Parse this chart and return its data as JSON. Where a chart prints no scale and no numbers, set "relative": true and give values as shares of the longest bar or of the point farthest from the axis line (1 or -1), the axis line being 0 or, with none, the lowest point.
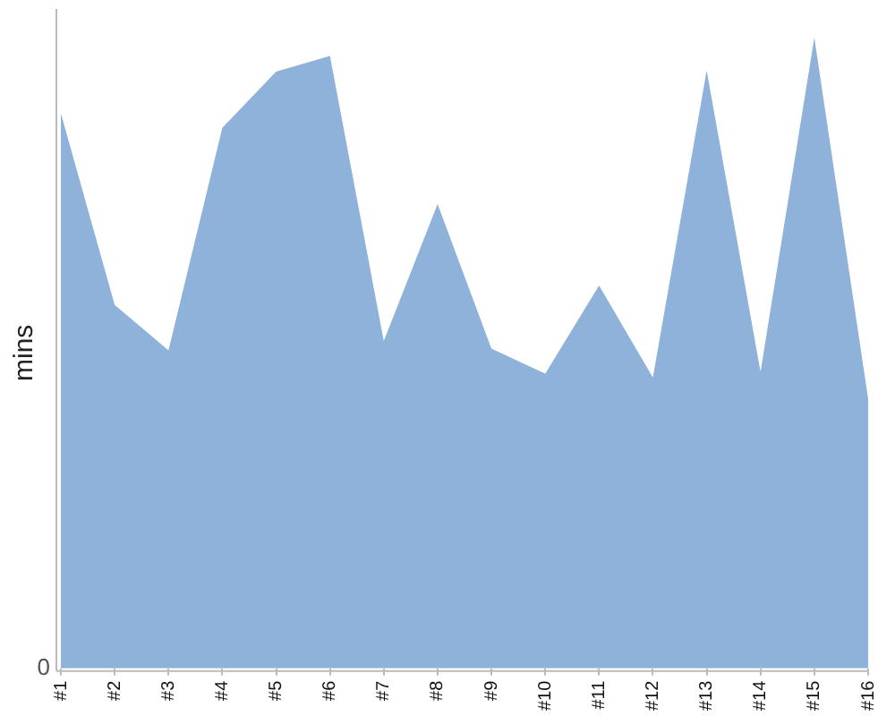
{
  "chart_data": {
    "type": "area",
    "relative": true,
    "ylabel": "mins",
    "categories": [
      "#1",
      "#2",
      "#3",
      "#4",
      "#5",
      "#6",
      "#7",
      "#8",
      "#9",
      "#10",
      "#11",
      "#12",
      "#13",
      "#14",
      "#15",
      "#16"
    ],
    "series": [
      {
        "color": "#8fb2da",
        "values": [
          0.88,
          0.576,
          0.504,
          0.857,
          0.946,
          0.971,
          0.519,
          0.736,
          0.507,
          0.467,
          0.607,
          0.461,
          0.948,
          0.47,
          1,
          0.427
        ]
      }
    ],
    "annotations": [
      "0"
    ],
    "grid": false,
    "legend": false
  }
}
